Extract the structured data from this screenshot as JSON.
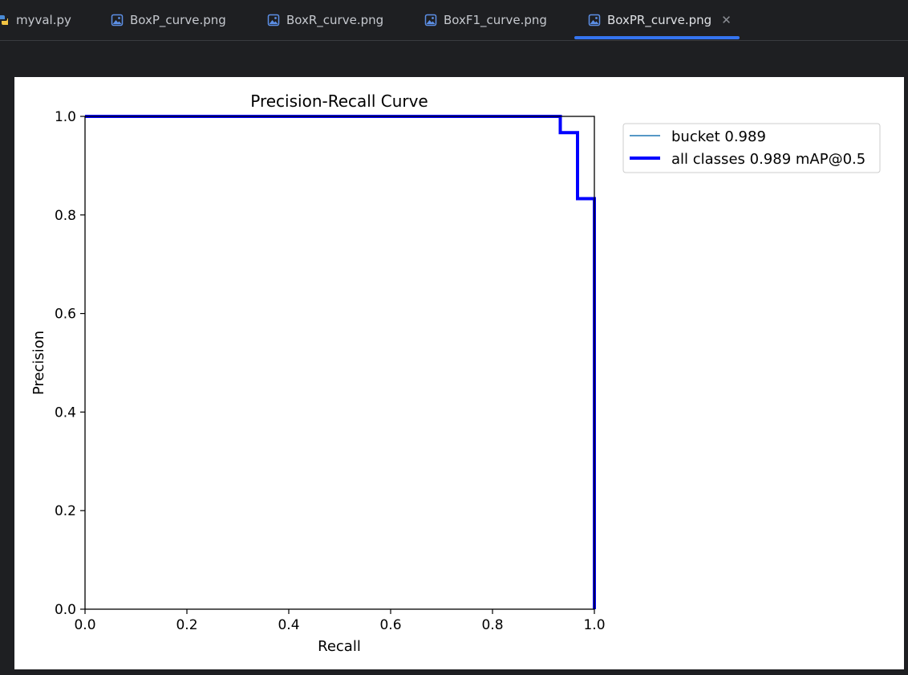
{
  "tabs": [
    {
      "label": "myval.py",
      "icon": "python-icon",
      "active": false
    },
    {
      "label": "BoxP_curve.png",
      "icon": "image-file-icon",
      "active": false
    },
    {
      "label": "BoxR_curve.png",
      "icon": "image-file-icon",
      "active": false
    },
    {
      "label": "BoxF1_curve.png",
      "icon": "image-file-icon",
      "active": false
    },
    {
      "label": "BoxPR_curve.png",
      "icon": "image-file-icon",
      "active": true,
      "close_icon": "close-icon"
    }
  ],
  "colors": {
    "accent": "#3574f0",
    "background": "#1e1f22",
    "series_bucket": "#1f77b4",
    "series_all": "#0000ff"
  },
  "chart_data": {
    "type": "line",
    "title": "Precision-Recall Curve",
    "xlabel": "Recall",
    "ylabel": "Precision",
    "xlim": [
      0,
      1
    ],
    "ylim": [
      0,
      1
    ],
    "xticks": [
      "0.0",
      "0.2",
      "0.4",
      "0.6",
      "0.8",
      "1.0"
    ],
    "yticks": [
      "0.0",
      "0.2",
      "0.4",
      "0.6",
      "0.8",
      "1.0"
    ],
    "grid": false,
    "legend_position": "outside-right-top",
    "series": [
      {
        "name": "bucket 0.989",
        "color": "#1f77b4",
        "width": "thin",
        "x": [
          0.0,
          0.933,
          0.933,
          0.967,
          0.967,
          1.0,
          1.0
        ],
        "y": [
          1.0,
          1.0,
          0.967,
          0.967,
          0.833,
          0.833,
          0.0
        ]
      },
      {
        "name": "all classes 0.989 mAP@0.5",
        "color": "#0000ff",
        "width": "thick",
        "x": [
          0.0,
          0.933,
          0.933,
          0.967,
          0.967,
          1.0,
          1.0
        ],
        "y": [
          1.0,
          1.0,
          0.967,
          0.967,
          0.833,
          0.833,
          0.0
        ]
      }
    ]
  }
}
